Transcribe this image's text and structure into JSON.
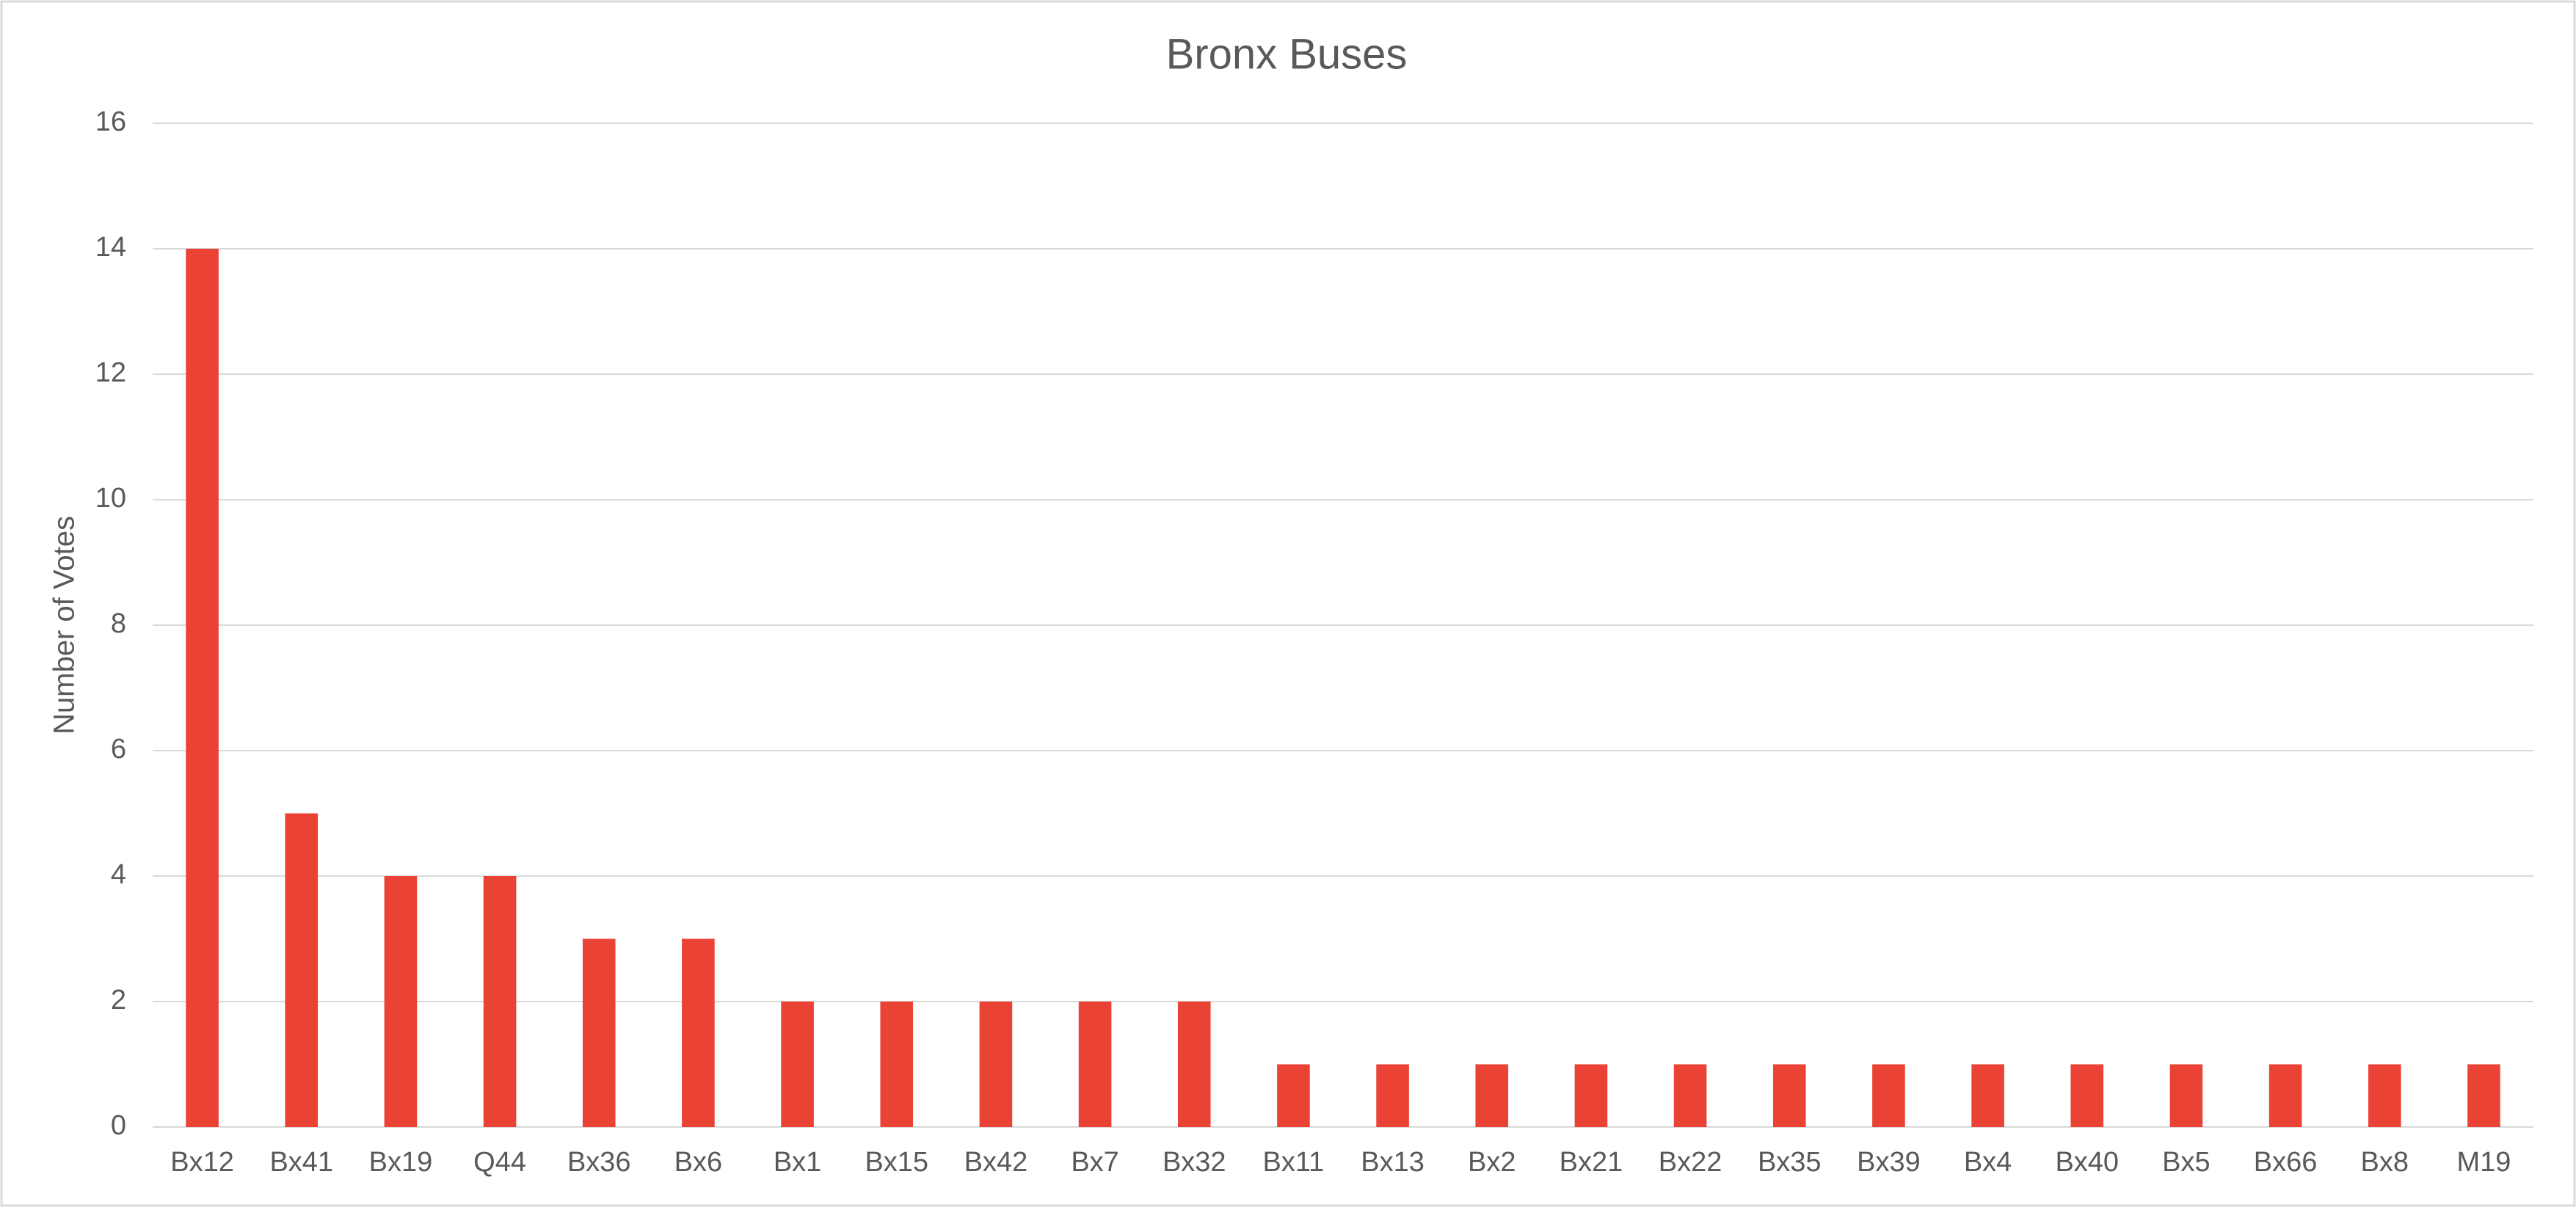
{
  "chart_data": {
    "type": "bar",
    "title": "Bronx Buses",
    "y_label": "Number of Votes",
    "categories": [
      "Bx12",
      "Bx41",
      "Bx19",
      "Q44",
      "Bx36",
      "Bx6",
      "Bx1",
      "Bx15",
      "Bx42",
      "Bx7",
      "Bx32",
      "Bx11",
      "Bx13",
      "Bx2",
      "Bx21",
      "Bx22",
      "Bx35",
      "Bx39",
      "Bx4",
      "Bx40",
      "Bx5",
      "Bx66",
      "Bx8",
      "M19"
    ],
    "values": [
      14,
      5,
      4,
      4,
      3,
      3,
      2,
      2,
      2,
      2,
      2,
      1,
      1,
      1,
      1,
      1,
      1,
      1,
      1,
      1,
      1,
      1,
      1,
      1
    ],
    "color": "#ea4335",
    "ylim": [
      0,
      16
    ],
    "yticks": [
      0,
      2,
      4,
      6,
      8,
      10,
      12,
      14,
      16
    ],
    "grid": true
  }
}
